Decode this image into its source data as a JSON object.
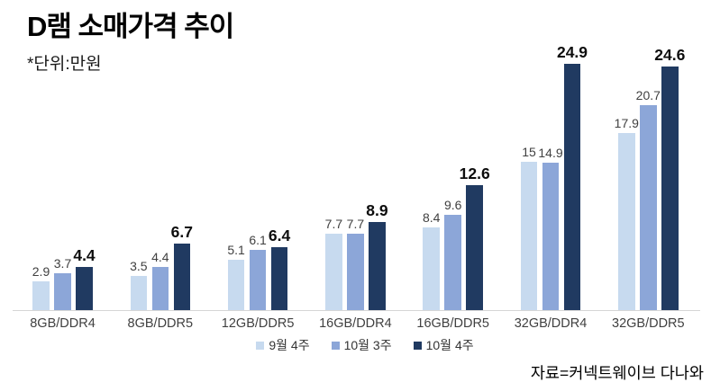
{
  "header": {
    "title": "D램 소매가격 추이",
    "subtitle": "*단위:만원"
  },
  "footer": {
    "source": "자료=커넥트웨이브 다나와"
  },
  "colors": {
    "series1": "#c7daef",
    "series2": "#8ca6d8",
    "series3": "#203a61",
    "axis_line": "#d6d6d6",
    "value_label": "#404040",
    "value_label_emph": "#0d0d0d",
    "category_label": "#404040"
  },
  "chart_data": {
    "type": "bar",
    "title": "D램 소매가격 추이",
    "subtitle": "*단위:만원",
    "unit": "만원",
    "categories": [
      "8GB/DDR4",
      "8GB/DDR5",
      "12GB/DDR5",
      "16GB/DDR4",
      "16GB/DDR5",
      "32GB/DDR4",
      "32GB/DDR5"
    ],
    "series": [
      {
        "name": "9월 4주",
        "color": "#c7daef",
        "values": [
          2.9,
          3.5,
          5.1,
          7.7,
          8.4,
          15,
          17.9
        ]
      },
      {
        "name": "10월 3주",
        "color": "#8ca6d8",
        "values": [
          3.7,
          4.4,
          6.1,
          7.7,
          9.6,
          14.9,
          20.7
        ]
      },
      {
        "name": "10월 4주",
        "color": "#203a61",
        "values": [
          4.4,
          6.7,
          6.4,
          8.9,
          12.6,
          24.9,
          24.6
        ]
      }
    ],
    "value_labels_shown": true,
    "emphasized_series": "10월 4주",
    "ylim": [
      0,
      25
    ],
    "grid": false,
    "legend_position": "bottom",
    "source": "자료=커넥트웨이브 다나와"
  }
}
